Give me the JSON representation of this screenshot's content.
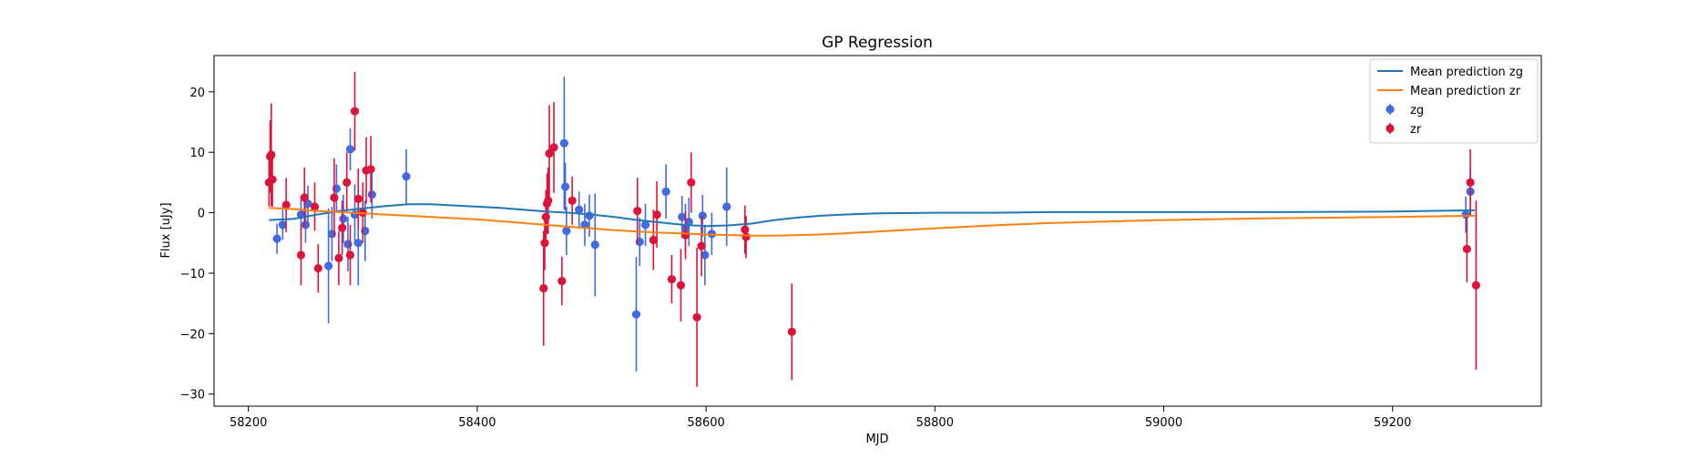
{
  "chart_data": {
    "type": "scatter",
    "title": "GP Regression",
    "xlabel": "MJD",
    "ylabel": "Flux [uJy]",
    "xlim": [
      58170,
      59330
    ],
    "ylim": [
      -32,
      26
    ],
    "xticks": [
      58200,
      58400,
      58600,
      58800,
      59000,
      59200
    ],
    "yticks": [
      -30,
      -20,
      -10,
      0,
      10,
      20
    ],
    "grid": false,
    "legend_position": "top-right",
    "lines": [
      {
        "name": "Mean prediction zg",
        "color": "#1f77b4",
        "x": [
          58218,
          58240,
          58260,
          58280,
          58300,
          58320,
          58340,
          58360,
          58380,
          58400,
          58420,
          58440,
          58460,
          58480,
          58500,
          58520,
          58540,
          58560,
          58580,
          58600,
          58620,
          58640,
          58660,
          58680,
          58700,
          58720,
          58750,
          58800,
          58850,
          58900,
          59000,
          59100,
          59200,
          59272
        ],
        "y": [
          -1.2,
          -1.0,
          -0.3,
          0.3,
          0.7,
          1.1,
          1.4,
          1.4,
          1.2,
          1.0,
          0.8,
          0.5,
          0.2,
          0.0,
          -0.3,
          -0.7,
          -1.2,
          -1.6,
          -2.0,
          -2.2,
          -2.1,
          -1.8,
          -1.2,
          -0.8,
          -0.5,
          -0.3,
          -0.1,
          0.0,
          0.0,
          0.1,
          0.1,
          0.1,
          0.2,
          0.4
        ]
      },
      {
        "name": "Mean prediction zr",
        "color": "#ff7f0e",
        "x": [
          58218,
          58240,
          58260,
          58280,
          58300,
          58320,
          58340,
          58360,
          58380,
          58400,
          58420,
          58440,
          58460,
          58480,
          58500,
          58520,
          58540,
          58560,
          58580,
          58600,
          58620,
          58640,
          58660,
          58680,
          58700,
          58720,
          58750,
          58800,
          58850,
          58900,
          59000,
          59100,
          59200,
          59272
        ],
        "y": [
          0.8,
          0.6,
          0.3,
          0.1,
          -0.1,
          -0.3,
          -0.5,
          -0.7,
          -0.9,
          -1.1,
          -1.4,
          -1.7,
          -2.0,
          -2.3,
          -2.6,
          -2.9,
          -3.1,
          -3.3,
          -3.4,
          -3.6,
          -3.7,
          -3.8,
          -3.8,
          -3.7,
          -3.6,
          -3.4,
          -3.1,
          -2.6,
          -2.1,
          -1.7,
          -1.2,
          -0.9,
          -0.7,
          -0.5
        ]
      }
    ],
    "series": [
      {
        "name": "zg",
        "color": "#4169e1",
        "points": [
          {
            "x": 58225,
            "y": -4.3,
            "err": 2.5
          },
          {
            "x": 58230,
            "y": -2.0,
            "err": 2.5
          },
          {
            "x": 58246,
            "y": -0.3,
            "err": 3.0
          },
          {
            "x": 58250,
            "y": -2.0,
            "err": 3.0
          },
          {
            "x": 58252,
            "y": 1.5,
            "err": 3.0
          },
          {
            "x": 58270,
            "y": -8.8,
            "err": 9.5
          },
          {
            "x": 58273,
            "y": -3.5,
            "err": 4.5
          },
          {
            "x": 58277,
            "y": 4.0,
            "err": 4.0
          },
          {
            "x": 58283,
            "y": -1.0,
            "err": 4.0
          },
          {
            "x": 58287,
            "y": -5.2,
            "err": 4.5
          },
          {
            "x": 58289,
            "y": 10.5,
            "err": 3.5
          },
          {
            "x": 58293,
            "y": -0.3,
            "err": 5.0
          },
          {
            "x": 58296,
            "y": -5.0,
            "err": 7.0
          },
          {
            "x": 58302,
            "y": -3.0,
            "err": 5.0
          },
          {
            "x": 58308,
            "y": 3.0,
            "err": 4.0
          },
          {
            "x": 58338,
            "y": 6.0,
            "err": 4.5
          },
          {
            "x": 58476,
            "y": 11.5,
            "err": 11.0
          },
          {
            "x": 58477,
            "y": 4.3,
            "err": 4.0
          },
          {
            "x": 58478,
            "y": -3.0,
            "err": 4.0
          },
          {
            "x": 58489,
            "y": 0.5,
            "err": 3.0
          },
          {
            "x": 58494,
            "y": -2.0,
            "err": 3.5
          },
          {
            "x": 58498,
            "y": -0.5,
            "err": 3.5
          },
          {
            "x": 58503,
            "y": -5.3,
            "err": 8.5
          },
          {
            "x": 58539,
            "y": -16.8,
            "err": 9.5
          },
          {
            "x": 58542,
            "y": -4.8,
            "err": 4.0
          },
          {
            "x": 58547,
            "y": -2.0,
            "err": 3.5
          },
          {
            "x": 58565,
            "y": 3.5,
            "err": 4.5
          },
          {
            "x": 58579,
            "y": -0.7,
            "err": 3.5
          },
          {
            "x": 58582,
            "y": -2.5,
            "err": 4.0
          },
          {
            "x": 58585,
            "y": -1.5,
            "err": 4.0
          },
          {
            "x": 58597,
            "y": -0.5,
            "err": 3.5
          },
          {
            "x": 58599,
            "y": -7.0,
            "err": 5.0
          },
          {
            "x": 58605,
            "y": -3.5,
            "err": 3.5
          },
          {
            "x": 58618,
            "y": 1.0,
            "err": 6.5
          },
          {
            "x": 59264,
            "y": -0.3,
            "err": 3.0
          },
          {
            "x": 59268,
            "y": 3.5,
            "err": 3.5
          }
        ]
      },
      {
        "name": "zr",
        "color": "#dc143c",
        "points": [
          {
            "x": 58218,
            "y": 5.0,
            "err": 4.0
          },
          {
            "x": 58219,
            "y": 9.3,
            "err": 6.0
          },
          {
            "x": 58220,
            "y": 9.6,
            "err": 8.5
          },
          {
            "x": 58221,
            "y": 5.5,
            "err": 4.5
          },
          {
            "x": 58233,
            "y": 1.3,
            "err": 4.5
          },
          {
            "x": 58246,
            "y": -7.0,
            "err": 5.0
          },
          {
            "x": 58249,
            "y": 2.5,
            "err": 5.0
          },
          {
            "x": 58258,
            "y": 1.0,
            "err": 4.0
          },
          {
            "x": 58261,
            "y": -9.2,
            "err": 4.0
          },
          {
            "x": 58275,
            "y": 2.5,
            "err": 6.5
          },
          {
            "x": 58279,
            "y": -7.5,
            "err": 4.5
          },
          {
            "x": 58282,
            "y": -2.5,
            "err": 4.5
          },
          {
            "x": 58286,
            "y": 5.0,
            "err": 5.0
          },
          {
            "x": 58289,
            "y": -7.0,
            "err": 5.0
          },
          {
            "x": 58293,
            "y": 16.8,
            "err": 6.5
          },
          {
            "x": 58296,
            "y": 2.3,
            "err": 5.0
          },
          {
            "x": 58300,
            "y": 0.0,
            "err": 5.0
          },
          {
            "x": 58303,
            "y": 7.0,
            "err": 5.5
          },
          {
            "x": 58307,
            "y": 7.2,
            "err": 5.5
          },
          {
            "x": 58458,
            "y": -12.5,
            "err": 9.5
          },
          {
            "x": 58459,
            "y": -5.0,
            "err": 4.5
          },
          {
            "x": 58460,
            "y": -0.7,
            "err": 4.5
          },
          {
            "x": 58461,
            "y": 1.5,
            "err": 5.0
          },
          {
            "x": 58462,
            "y": 2.0,
            "err": 5.5
          },
          {
            "x": 58463,
            "y": 9.8,
            "err": 8.0
          },
          {
            "x": 58467,
            "y": 10.8,
            "err": 7.5
          },
          {
            "x": 58474,
            "y": -11.3,
            "err": 4.0
          },
          {
            "x": 58483,
            "y": 2.0,
            "err": 4.0
          },
          {
            "x": 58540,
            "y": 0.3,
            "err": 5.5
          },
          {
            "x": 58554,
            "y": -4.5,
            "err": 5.0
          },
          {
            "x": 58557,
            "y": -0.3,
            "err": 5.5
          },
          {
            "x": 58570,
            "y": -11.0,
            "err": 4.0
          },
          {
            "x": 58578,
            "y": -12.0,
            "err": 6.0
          },
          {
            "x": 58582,
            "y": -3.7,
            "err": 4.0
          },
          {
            "x": 58587,
            "y": 5.0,
            "err": 5.0
          },
          {
            "x": 58592,
            "y": -17.3,
            "err": 11.5
          },
          {
            "x": 58596,
            "y": -5.5,
            "err": 5.0
          },
          {
            "x": 58634,
            "y": -2.8,
            "err": 4.0
          },
          {
            "x": 58635,
            "y": -4.0,
            "err": 3.5
          },
          {
            "x": 58675,
            "y": -19.7,
            "err": 8.0
          },
          {
            "x": 59265,
            "y": -6.0,
            "err": 5.5
          },
          {
            "x": 59268,
            "y": 5.0,
            "err": 5.5
          },
          {
            "x": 59273,
            "y": -12.0,
            "err": 14.0
          }
        ]
      }
    ]
  }
}
